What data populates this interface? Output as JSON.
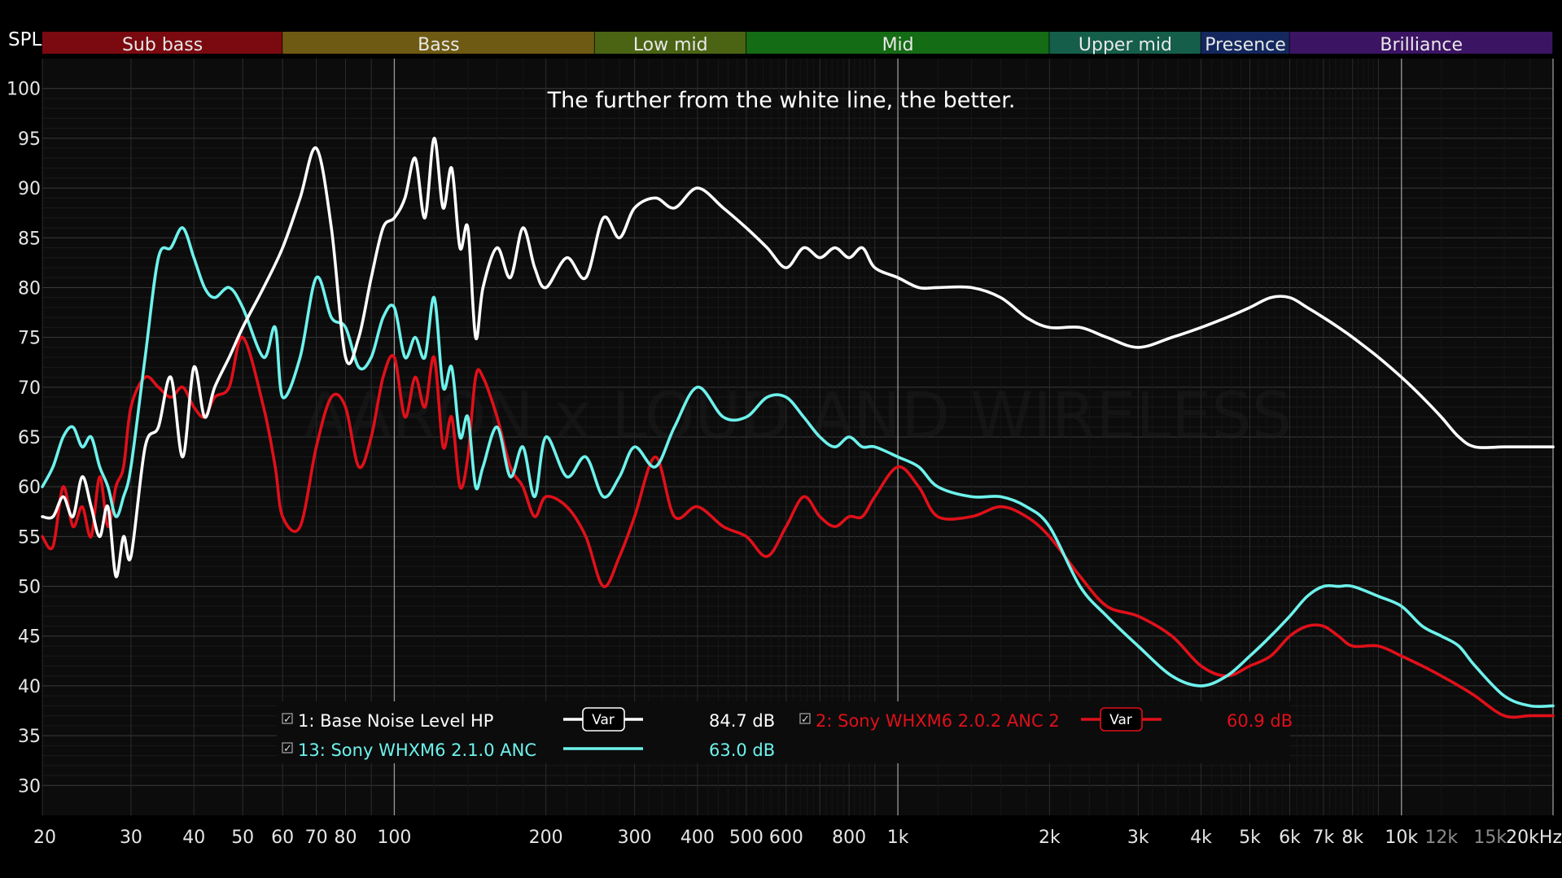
{
  "chart_data": {
    "type": "line",
    "ylabel": "SPL",
    "annotation": "The further from the white line, the better.",
    "watermark": "AARON x LOUD AND WIRELESS",
    "xscale": "log",
    "xlim": [
      20,
      20000
    ],
    "ylim": [
      27,
      103
    ],
    "grid": true,
    "yticks": [
      30,
      35,
      40,
      45,
      50,
      55,
      60,
      65,
      70,
      75,
      80,
      85,
      90,
      95,
      100
    ],
    "xticks": [
      {
        "value": 20,
        "label": "20"
      },
      {
        "value": 30,
        "label": "30"
      },
      {
        "value": 40,
        "label": "40"
      },
      {
        "value": 50,
        "label": "50"
      },
      {
        "value": 60,
        "label": "60"
      },
      {
        "value": 70,
        "label": "70"
      },
      {
        "value": 80,
        "label": "80"
      },
      {
        "value": 100,
        "label": "100"
      },
      {
        "value": 200,
        "label": "200"
      },
      {
        "value": 300,
        "label": "300"
      },
      {
        "value": 400,
        "label": "400"
      },
      {
        "value": 500,
        "label": "500"
      },
      {
        "value": 600,
        "label": "600"
      },
      {
        "value": 800,
        "label": "800"
      },
      {
        "value": 1000,
        "label": "1k"
      },
      {
        "value": 2000,
        "label": "2k"
      },
      {
        "value": 3000,
        "label": "3k"
      },
      {
        "value": 4000,
        "label": "4k"
      },
      {
        "value": 5000,
        "label": "5k"
      },
      {
        "value": 6000,
        "label": "6k"
      },
      {
        "value": 7000,
        "label": "7k"
      },
      {
        "value": 8000,
        "label": "8k"
      },
      {
        "value": 10000,
        "label": "10k"
      },
      {
        "value": 12000,
        "label": "12k",
        "minor": true
      },
      {
        "value": 15000,
        "label": "15k",
        "minor": true
      },
      {
        "value": 20000,
        "label": "20kHz"
      }
    ],
    "bands": [
      {
        "label": "Sub bass",
        "from": 20,
        "to": 60,
        "color": "#7a0a10"
      },
      {
        "label": "Bass",
        "from": 60,
        "to": 250,
        "color": "#6e5a12"
      },
      {
        "label": "Low mid",
        "from": 250,
        "to": 500,
        "color": "#4a6414"
      },
      {
        "label": "Mid",
        "from": 500,
        "to": 2000,
        "color": "#146c14"
      },
      {
        "label": "Upper mid",
        "from": 2000,
        "to": 4000,
        "color": "#145e4a"
      },
      {
        "label": "Presence",
        "from": 4000,
        "to": 6000,
        "color": "#14285e"
      },
      {
        "label": "Brilliance",
        "from": 6000,
        "to": 20000,
        "color": "#3c1464"
      }
    ],
    "series": [
      {
        "name": "1: Base Noise Level HP",
        "color": "#ffffff",
        "value_label": "84.7 dB",
        "points": [
          [
            20,
            57
          ],
          [
            21,
            57
          ],
          [
            22,
            59
          ],
          [
            23,
            57
          ],
          [
            24,
            61
          ],
          [
            25,
            58
          ],
          [
            26,
            55
          ],
          [
            27,
            58
          ],
          [
            28,
            51
          ],
          [
            29,
            55
          ],
          [
            30,
            53
          ],
          [
            32,
            64
          ],
          [
            34,
            66
          ],
          [
            36,
            71
          ],
          [
            38,
            63
          ],
          [
            40,
            72
          ],
          [
            42,
            67
          ],
          [
            44,
            70
          ],
          [
            47,
            73
          ],
          [
            50,
            76
          ],
          [
            55,
            80
          ],
          [
            60,
            84
          ],
          [
            65,
            89
          ],
          [
            70,
            94
          ],
          [
            75,
            86
          ],
          [
            80,
            73
          ],
          [
            85,
            75
          ],
          [
            90,
            81
          ],
          [
            95,
            86
          ],
          [
            100,
            87
          ],
          [
            105,
            89
          ],
          [
            110,
            93
          ],
          [
            115,
            87
          ],
          [
            120,
            95
          ],
          [
            125,
            88
          ],
          [
            130,
            92
          ],
          [
            135,
            84
          ],
          [
            140,
            86
          ],
          [
            145,
            75
          ],
          [
            150,
            80
          ],
          [
            160,
            84
          ],
          [
            170,
            81
          ],
          [
            180,
            86
          ],
          [
            190,
            82
          ],
          [
            200,
            80
          ],
          [
            220,
            83
          ],
          [
            240,
            81
          ],
          [
            260,
            87
          ],
          [
            280,
            85
          ],
          [
            300,
            88
          ],
          [
            330,
            89
          ],
          [
            360,
            88
          ],
          [
            400,
            90
          ],
          [
            450,
            88
          ],
          [
            500,
            86
          ],
          [
            550,
            84
          ],
          [
            600,
            82
          ],
          [
            650,
            84
          ],
          [
            700,
            83
          ],
          [
            750,
            84
          ],
          [
            800,
            83
          ],
          [
            850,
            84
          ],
          [
            900,
            82
          ],
          [
            1000,
            81
          ],
          [
            1100,
            80
          ],
          [
            1200,
            80
          ],
          [
            1400,
            80
          ],
          [
            1600,
            79
          ],
          [
            1800,
            77
          ],
          [
            2000,
            76
          ],
          [
            2300,
            76
          ],
          [
            2600,
            75
          ],
          [
            3000,
            74
          ],
          [
            3500,
            75
          ],
          [
            4000,
            76
          ],
          [
            4500,
            77
          ],
          [
            5000,
            78
          ],
          [
            5500,
            79
          ],
          [
            6000,
            79
          ],
          [
            6500,
            78
          ],
          [
            7000,
            77
          ],
          [
            7500,
            76
          ],
          [
            8000,
            75
          ],
          [
            9000,
            73
          ],
          [
            10000,
            71
          ],
          [
            11000,
            69
          ],
          [
            12000,
            67
          ],
          [
            13000,
            65
          ],
          [
            14000,
            64
          ],
          [
            16000,
            64
          ],
          [
            18000,
            64
          ],
          [
            20000,
            64
          ]
        ]
      },
      {
        "name": "13: Sony WHXM6 2.1.0  ANC",
        "color": "#6ef2ec",
        "value_label": "63.0 dB",
        "points": [
          [
            20,
            60
          ],
          [
            21,
            62
          ],
          [
            22,
            65
          ],
          [
            23,
            66
          ],
          [
            24,
            64
          ],
          [
            25,
            65
          ],
          [
            26,
            62
          ],
          [
            27,
            60
          ],
          [
            28,
            57
          ],
          [
            29,
            59
          ],
          [
            30,
            62
          ],
          [
            32,
            73
          ],
          [
            34,
            83
          ],
          [
            36,
            84
          ],
          [
            38,
            86
          ],
          [
            40,
            83
          ],
          [
            42,
            80
          ],
          [
            44,
            79
          ],
          [
            47,
            80
          ],
          [
            50,
            78
          ],
          [
            55,
            73
          ],
          [
            58,
            76
          ],
          [
            60,
            69
          ],
          [
            65,
            73
          ],
          [
            70,
            81
          ],
          [
            75,
            77
          ],
          [
            80,
            76
          ],
          [
            85,
            72
          ],
          [
            90,
            73
          ],
          [
            95,
            77
          ],
          [
            100,
            78
          ],
          [
            105,
            73
          ],
          [
            110,
            75
          ],
          [
            115,
            73
          ],
          [
            120,
            79
          ],
          [
            125,
            70
          ],
          [
            130,
            72
          ],
          [
            135,
            65
          ],
          [
            140,
            67
          ],
          [
            145,
            60
          ],
          [
            150,
            62
          ],
          [
            160,
            66
          ],
          [
            170,
            61
          ],
          [
            180,
            64
          ],
          [
            190,
            59
          ],
          [
            200,
            65
          ],
          [
            220,
            61
          ],
          [
            240,
            63
          ],
          [
            260,
            59
          ],
          [
            280,
            61
          ],
          [
            300,
            64
          ],
          [
            330,
            62
          ],
          [
            360,
            66
          ],
          [
            400,
            70
          ],
          [
            450,
            67
          ],
          [
            500,
            67
          ],
          [
            550,
            69
          ],
          [
            600,
            69
          ],
          [
            650,
            67
          ],
          [
            700,
            65
          ],
          [
            750,
            64
          ],
          [
            800,
            65
          ],
          [
            850,
            64
          ],
          [
            900,
            64
          ],
          [
            1000,
            63
          ],
          [
            1100,
            62
          ],
          [
            1200,
            60
          ],
          [
            1400,
            59
          ],
          [
            1600,
            59
          ],
          [
            1800,
            58
          ],
          [
            2000,
            56
          ],
          [
            2300,
            50
          ],
          [
            2600,
            47
          ],
          [
            3000,
            44
          ],
          [
            3500,
            41
          ],
          [
            4000,
            40
          ],
          [
            4500,
            41
          ],
          [
            5000,
            43
          ],
          [
            5500,
            45
          ],
          [
            6000,
            47
          ],
          [
            6500,
            49
          ],
          [
            7000,
            50
          ],
          [
            7500,
            50
          ],
          [
            8000,
            50
          ],
          [
            9000,
            49
          ],
          [
            10000,
            48
          ],
          [
            11000,
            46
          ],
          [
            12000,
            45
          ],
          [
            13000,
            44
          ],
          [
            14000,
            42
          ],
          [
            16000,
            39
          ],
          [
            18000,
            38
          ],
          [
            20000,
            38
          ]
        ]
      },
      {
        "name": "2: Sony WHXM6 2.0.2 ANC 2",
        "color": "#e0101a",
        "value_label": "60.9 dB",
        "points": [
          [
            20,
            55
          ],
          [
            21,
            54
          ],
          [
            22,
            60
          ],
          [
            23,
            56
          ],
          [
            24,
            58
          ],
          [
            25,
            55
          ],
          [
            26,
            61
          ],
          [
            27,
            56
          ],
          [
            28,
            60
          ],
          [
            29,
            62
          ],
          [
            30,
            68
          ],
          [
            32,
            71
          ],
          [
            34,
            70
          ],
          [
            36,
            69
          ],
          [
            38,
            70
          ],
          [
            40,
            68
          ],
          [
            42,
            67
          ],
          [
            44,
            69
          ],
          [
            47,
            70
          ],
          [
            50,
            75
          ],
          [
            55,
            68
          ],
          [
            58,
            62
          ],
          [
            60,
            57
          ],
          [
            65,
            56
          ],
          [
            70,
            64
          ],
          [
            75,
            69
          ],
          [
            80,
            68
          ],
          [
            85,
            62
          ],
          [
            90,
            65
          ],
          [
            95,
            71
          ],
          [
            100,
            73
          ],
          [
            105,
            67
          ],
          [
            110,
            71
          ],
          [
            115,
            68
          ],
          [
            120,
            73
          ],
          [
            125,
            64
          ],
          [
            130,
            67
          ],
          [
            135,
            60
          ],
          [
            140,
            63
          ],
          [
            145,
            71
          ],
          [
            150,
            71
          ],
          [
            160,
            67
          ],
          [
            170,
            62
          ],
          [
            180,
            60
          ],
          [
            190,
            57
          ],
          [
            200,
            59
          ],
          [
            220,
            58
          ],
          [
            240,
            55
          ],
          [
            260,
            50
          ],
          [
            280,
            53
          ],
          [
            300,
            57
          ],
          [
            330,
            63
          ],
          [
            360,
            57
          ],
          [
            400,
            58
          ],
          [
            450,
            56
          ],
          [
            500,
            55
          ],
          [
            550,
            53
          ],
          [
            600,
            56
          ],
          [
            650,
            59
          ],
          [
            700,
            57
          ],
          [
            750,
            56
          ],
          [
            800,
            57
          ],
          [
            850,
            57
          ],
          [
            900,
            59
          ],
          [
            1000,
            62
          ],
          [
            1100,
            60
          ],
          [
            1200,
            57
          ],
          [
            1400,
            57
          ],
          [
            1600,
            58
          ],
          [
            1800,
            57
          ],
          [
            2000,
            55
          ],
          [
            2300,
            51
          ],
          [
            2600,
            48
          ],
          [
            3000,
            47
          ],
          [
            3500,
            45
          ],
          [
            4000,
            42
          ],
          [
            4500,
            41
          ],
          [
            5000,
            42
          ],
          [
            5500,
            43
          ],
          [
            6000,
            45
          ],
          [
            6500,
            46
          ],
          [
            7000,
            46
          ],
          [
            7500,
            45
          ],
          [
            8000,
            44
          ],
          [
            9000,
            44
          ],
          [
            10000,
            43
          ],
          [
            11000,
            42
          ],
          [
            12000,
            41
          ],
          [
            13000,
            40
          ],
          [
            14000,
            39
          ],
          [
            16000,
            37
          ],
          [
            18000,
            37
          ],
          [
            20000,
            37
          ]
        ]
      }
    ],
    "legend": {
      "placement": "bottom-center",
      "var_label": "Var"
    }
  }
}
